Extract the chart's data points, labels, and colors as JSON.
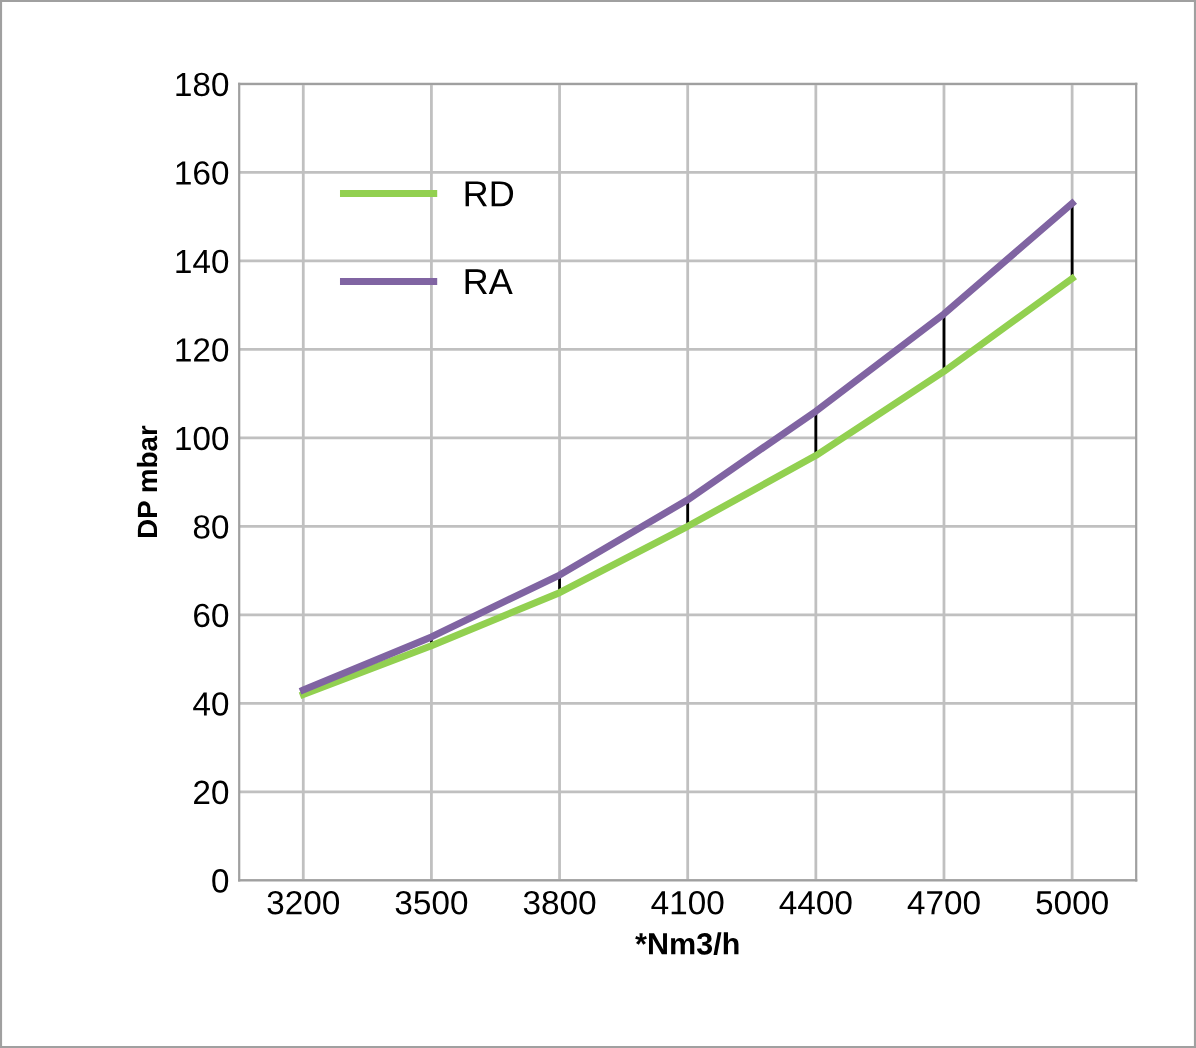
{
  "chart_data": {
    "type": "line",
    "xlabel": "*Nm3/h",
    "ylabel": "DP mbar",
    "categories": [
      "3200",
      "3500",
      "3800",
      "4100",
      "4400",
      "4700",
      "5000"
    ],
    "series": [
      {
        "name": "RD",
        "color": "#92d050",
        "values": [
          42,
          53,
          65,
          80,
          96,
          115,
          136
        ]
      },
      {
        "name": "RA",
        "color": "#8064a2",
        "values": [
          43,
          55,
          69,
          86,
          106,
          128,
          153
        ]
      }
    ],
    "ylim": [
      0,
      180
    ],
    "yticks": [
      0,
      20,
      40,
      60,
      80,
      100,
      120,
      140,
      160,
      180
    ],
    "grid": true,
    "legend": "top left",
    "marker": "none",
    "line_style": "solid"
  }
}
